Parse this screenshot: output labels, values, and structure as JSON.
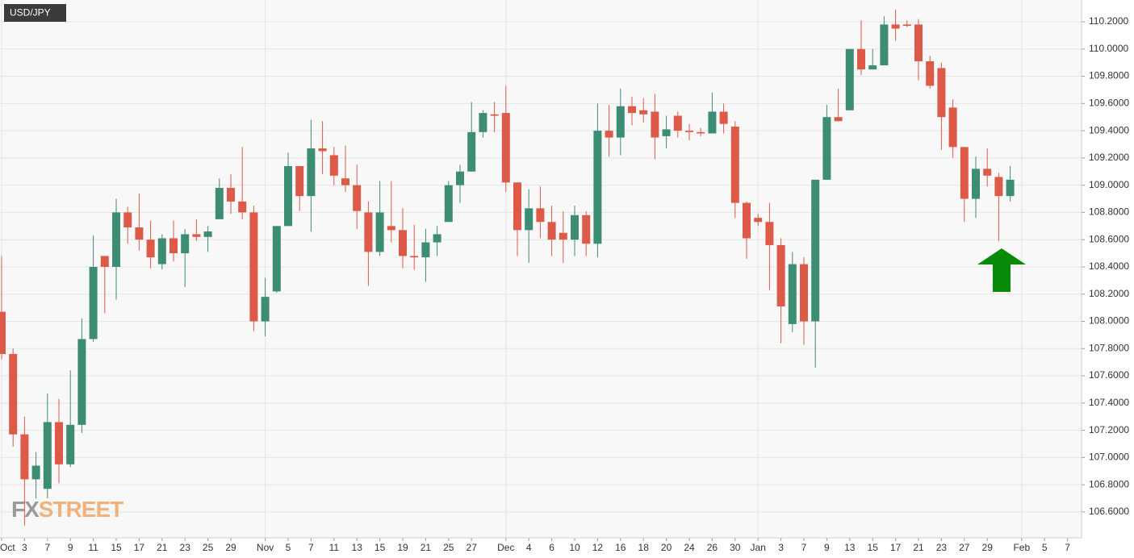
{
  "chart_data": {
    "type": "candlestick",
    "title": "USD/JPY",
    "watermark": [
      "FX",
      "STREET"
    ],
    "categories": [
      "Oct",
      null,
      "3",
      null,
      "7",
      null,
      "9",
      null,
      "11",
      null,
      "15",
      null,
      "17",
      null,
      "21",
      null,
      "23",
      null,
      "25",
      null,
      "29",
      null,
      null,
      "Nov",
      null,
      "5",
      null,
      "7",
      null,
      "11",
      null,
      "13",
      null,
      "15",
      null,
      "19",
      null,
      "21",
      null,
      "25",
      null,
      "27",
      null,
      null,
      "Dec",
      null,
      "4",
      null,
      "6",
      null,
      "10",
      null,
      "12",
      null,
      "16",
      null,
      "18",
      null,
      "20",
      null,
      "24",
      null,
      "26",
      null,
      "30",
      null,
      "Jan",
      null,
      "3",
      null,
      "7",
      null,
      "9",
      null,
      "13",
      null,
      "15",
      null,
      "17",
      null,
      "21",
      null,
      "23",
      null,
      "27",
      null,
      "29",
      null,
      null,
      "Feb",
      null,
      "5",
      null,
      "7"
    ],
    "open": [
      108.07,
      107.76,
      107.17,
      106.84,
      106.77,
      107.26,
      106.95,
      107.24,
      107.87,
      108.48,
      108.4,
      108.8,
      108.69,
      108.6,
      108.42,
      108.61,
      108.5,
      108.64,
      108.62,
      108.75,
      108.98,
      108.88,
      108.8,
      108.0,
      108.22,
      108.7,
      109.14,
      108.92,
      109.27,
      109.22,
      109.05,
      109.0,
      108.8,
      108.51,
      108.7,
      108.67,
      108.48,
      108.47,
      108.58,
      108.73,
      109.0,
      109.1,
      109.39,
      109.52,
      109.53,
      109.02,
      108.67,
      108.83,
      108.73,
      108.65,
      108.6,
      108.78,
      108.57,
      109.4,
      109.35,
      109.58,
      109.55,
      109.54,
      109.36,
      109.51,
      109.4,
      109.39,
      109.38,
      109.54,
      109.43,
      108.87,
      108.76,
      108.73,
      108.56,
      107.98,
      108.42,
      108.0,
      109.04,
      109.5,
      109.55,
      110.0,
      109.85,
      109.88,
      110.18,
      110.18,
      110.18,
      109.91,
      109.86,
      109.57,
      109.28,
      108.9,
      109.12,
      109.06,
      108.92,
      null,
      null,
      null,
      null,
      null
    ],
    "high": [
      108.48,
      107.8,
      107.3,
      107.04,
      107.47,
      107.43,
      107.64,
      108.02,
      108.63,
      108.48,
      108.9,
      108.84,
      108.94,
      108.74,
      108.64,
      108.74,
      108.68,
      108.75,
      108.7,
      109.05,
      109.08,
      109.28,
      108.85,
      108.32,
      108.7,
      109.24,
      109.14,
      109.48,
      109.47,
      109.28,
      109.29,
      109.15,
      108.88,
      109.03,
      109.03,
      108.83,
      108.71,
      108.68,
      108.7,
      109.03,
      109.15,
      109.61,
      109.55,
      109.61,
      109.73,
      109.02,
      108.97,
      108.99,
      108.85,
      108.81,
      108.85,
      108.81,
      109.6,
      109.59,
      109.71,
      109.65,
      109.64,
      109.67,
      109.51,
      109.54,
      109.45,
      109.42,
      109.68,
      109.6,
      109.47,
      108.88,
      108.79,
      108.87,
      108.61,
      108.51,
      108.47,
      109.04,
      109.59,
      109.71,
      110.0,
      110.21,
      110.0,
      110.24,
      110.29,
      110.21,
      110.22,
      109.95,
      109.9,
      109.63,
      109.28,
      109.21,
      109.27,
      109.09,
      109.14,
      null,
      null,
      null,
      null,
      null
    ],
    "low": [
      107.72,
      107.08,
      106.5,
      106.7,
      106.7,
      106.81,
      106.93,
      107.18,
      107.85,
      108.06,
      108.16,
      108.57,
      108.52,
      108.39,
      108.38,
      108.44,
      108.25,
      108.59,
      108.51,
      108.75,
      108.79,
      108.75,
      107.93,
      107.89,
      108.21,
      108.7,
      108.81,
      108.66,
      109.08,
      109.0,
      108.95,
      108.68,
      108.26,
      108.48,
      108.58,
      108.39,
      108.38,
      108.29,
      108.48,
      108.73,
      108.87,
      109.1,
      109.35,
      109.39,
      108.95,
      108.48,
      108.43,
      108.61,
      108.48,
      108.43,
      108.48,
      108.48,
      108.47,
      109.21,
      109.22,
      109.44,
      109.46,
      109.19,
      109.27,
      109.35,
      109.33,
      109.36,
      109.38,
      109.38,
      108.76,
      108.46,
      108.7,
      108.23,
      107.84,
      107.92,
      107.83,
      107.66,
      109.04,
      109.47,
      109.55,
      109.81,
      109.85,
      109.88,
      110.06,
      110.16,
      109.77,
      109.71,
      109.26,
      109.2,
      108.73,
      108.76,
      108.99,
      108.59,
      108.88,
      null,
      null,
      null,
      null,
      null
    ],
    "close": [
      107.76,
      107.17,
      106.84,
      106.94,
      107.26,
      106.95,
      107.24,
      107.87,
      108.4,
      108.4,
      108.8,
      108.69,
      108.6,
      108.47,
      108.61,
      108.5,
      108.64,
      108.62,
      108.66,
      108.98,
      108.88,
      108.8,
      108.0,
      108.18,
      108.7,
      109.14,
      108.92,
      109.27,
      109.25,
      109.07,
      109.0,
      108.81,
      108.51,
      108.8,
      108.67,
      108.48,
      108.47,
      108.58,
      108.64,
      109.0,
      109.1,
      109.39,
      109.53,
      109.51,
      109.02,
      108.67,
      108.83,
      108.73,
      108.6,
      108.6,
      108.78,
      108.57,
      109.4,
      109.35,
      109.58,
      109.53,
      109.52,
      109.35,
      109.41,
      109.4,
      109.39,
      109.38,
      109.54,
      109.45,
      108.87,
      108.61,
      108.73,
      108.56,
      108.11,
      108.42,
      108.0,
      109.04,
      109.5,
      109.47,
      110.0,
      109.85,
      109.88,
      110.18,
      110.15,
      110.17,
      109.91,
      109.73,
      109.5,
      109.28,
      108.9,
      109.12,
      109.07,
      108.92,
      109.04,
      null,
      null,
      null,
      null,
      null
    ],
    "up_color": "#3d8c74",
    "down_color": "#dd5a48",
    "ylim": [
      106.41,
      110.36
    ],
    "yticks": [
      {
        "value": 106.6,
        "label": "106.6000"
      },
      {
        "value": 106.8,
        "label": "106.8000"
      },
      {
        "value": 107.0,
        "label": "107.0000"
      },
      {
        "value": 107.2,
        "label": "107.2000"
      },
      {
        "value": 107.4,
        "label": "107.4000"
      },
      {
        "value": 107.6,
        "label": "107.6000"
      },
      {
        "value": 107.8,
        "label": "107.8000"
      },
      {
        "value": 108.0,
        "label": "108.0000"
      },
      {
        "value": 108.2,
        "label": "108.2000"
      },
      {
        "value": 108.4,
        "label": "108.4000"
      },
      {
        "value": 108.6,
        "label": "108.6000"
      },
      {
        "value": 108.8,
        "label": "108.8000"
      },
      {
        "value": 109.0,
        "label": "109.0000"
      },
      {
        "value": 109.2,
        "label": "109.2000"
      },
      {
        "value": 109.4,
        "label": "109.4000"
      },
      {
        "value": 109.6,
        "label": "109.6000"
      },
      {
        "value": 109.8,
        "label": "109.8000"
      },
      {
        "value": 110.0,
        "label": "110.0000"
      },
      {
        "value": 110.2,
        "label": "110.2000"
      }
    ],
    "grid": true
  }
}
